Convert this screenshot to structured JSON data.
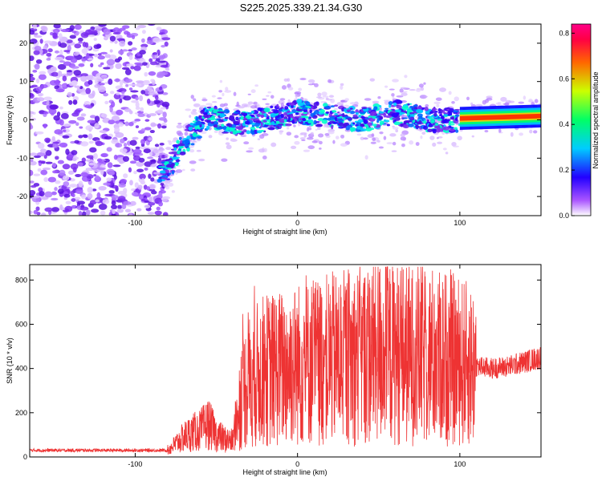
{
  "title": "S225.2025.339.21.34.G30",
  "colors": {
    "snr_line": "#ee3333",
    "axis": "#000000"
  },
  "chart_data": [
    {
      "type": "heatmap",
      "xlabel": "Height of straight line (km)",
      "ylabel": "Frequency (Hz)",
      "xlim": [
        -165,
        150
      ],
      "ylim": [
        -25,
        25
      ],
      "xticks": [
        -100,
        0,
        100
      ],
      "yticks": [
        -20,
        -10,
        0,
        10,
        20
      ],
      "colorbar": {
        "label": "Normalized spectral amplitude",
        "range": [
          0,
          0.84
        ],
        "ticks": [
          0.0,
          0.2,
          0.4,
          0.6,
          0.8
        ],
        "colormap": [
          "#ffffff",
          "#8800ff",
          "#0000ff",
          "#00ffff",
          "#00ff00",
          "#ffff00",
          "#ff0000",
          "#ff0077"
        ]
      },
      "description_points": [
        {
          "x": -80,
          "y": -13
        },
        {
          "x": -70,
          "y": -6
        },
        {
          "x": -55,
          "y": 1
        },
        {
          "x": -40,
          "y": -1
        },
        {
          "x": -20,
          "y": 0
        },
        {
          "x": 0,
          "y": 2
        },
        {
          "x": 20,
          "y": 1
        },
        {
          "x": 40,
          "y": 0
        },
        {
          "x": 60,
          "y": 2
        },
        {
          "x": 80,
          "y": 0
        },
        {
          "x": 100,
          "y": 0
        },
        {
          "x": 120,
          "y": 1.5
        },
        {
          "x": 145,
          "y": 1
        }
      ],
      "grid": false
    },
    {
      "type": "line",
      "xlabel": "Height of straight line (km)",
      "ylabel": "SNR (10 * v/v)",
      "xlim": [
        -165,
        150
      ],
      "ylim": [
        0,
        870
      ],
      "xticks": [
        -100,
        0,
        100
      ],
      "yticks": [
        0,
        200,
        400,
        600,
        800
      ],
      "series": [
        {
          "x": [
            -165,
            -140,
            -120,
            -100,
            -80,
            -75,
            -70,
            -65,
            -60,
            -55,
            -50,
            -45,
            -40,
            -35,
            -30,
            -25,
            -20,
            -10,
            0,
            10,
            20,
            30,
            40,
            50,
            60,
            70,
            80,
            90,
            100,
            110,
            120,
            130,
            140,
            150
          ],
          "y": [
            30,
            30,
            30,
            30,
            30,
            60,
            90,
            110,
            120,
            150,
            100,
            80,
            70,
            280,
            340,
            370,
            390,
            400,
            420,
            430,
            440,
            450,
            460,
            480,
            470,
            460,
            460,
            450,
            430,
            410,
            400,
            410,
            430,
            450
          ]
        }
      ],
      "grid": false
    }
  ]
}
